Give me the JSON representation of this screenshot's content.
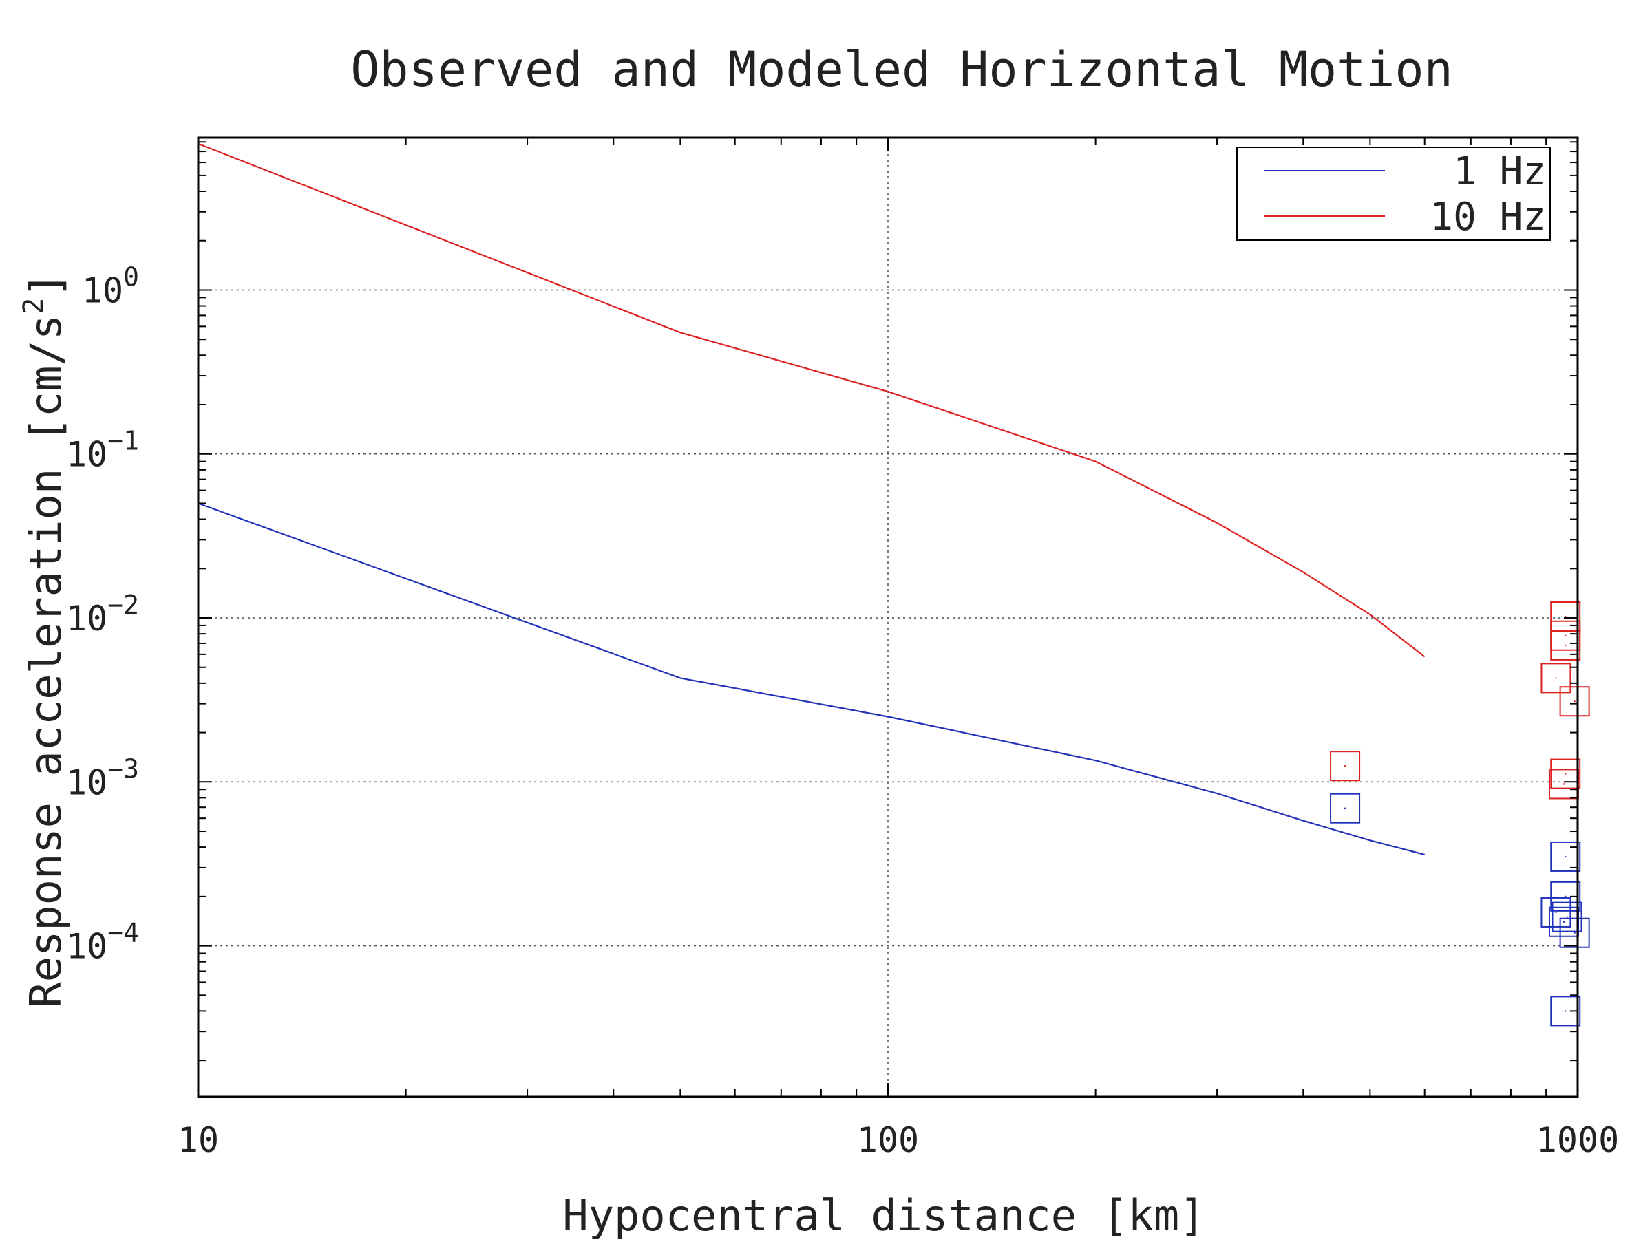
{
  "chart_data": {
    "type": "line",
    "title": "Observed and Modeled Horizontal Motion",
    "xlabel": "Hypocentral distance [km]",
    "ylabel_text": "Response acceleration [cm/s",
    "ylabel_sup": "2",
    "ylabel_end": "]",
    "x_scale": "log",
    "y_scale": "log",
    "xlim": [
      10,
      1000
    ],
    "ylim": [
      1.2e-05,
      8.5
    ],
    "grid": true,
    "legend_position": "top-right",
    "x_ticks": [
      {
        "value": 10,
        "label": "10"
      },
      {
        "value": 100,
        "label": "100"
      },
      {
        "value": 1000,
        "label": "1000"
      }
    ],
    "y_ticks": [
      {
        "value": 1,
        "base": "10",
        "exp": "0"
      },
      {
        "value": 0.1,
        "base": "10",
        "exp": "−1"
      },
      {
        "value": 0.01,
        "base": "10",
        "exp": "−2"
      },
      {
        "value": 0.001,
        "base": "10",
        "exp": "−3"
      },
      {
        "value": 0.0001,
        "base": "10",
        "exp": "−4"
      }
    ],
    "series": [
      {
        "name": "1 Hz",
        "color": "#2233bb",
        "line": {
          "x": [
            10,
            50,
            100,
            200,
            300,
            400,
            500,
            600
          ],
          "y": [
            0.05,
            0.0043,
            0.0025,
            0.00135,
            0.00085,
            0.00058,
            0.00044,
            0.00036
          ]
        },
        "observed": {
          "x": [
            460,
            960,
            960,
            930,
            965,
            955,
            990,
            960
          ],
          "y": [
            0.00069,
            0.00035,
            0.0002,
            0.00016,
            0.00015,
            0.00014,
            0.00012,
            4e-05
          ]
        }
      },
      {
        "name": "10 Hz",
        "color": "#dd2222",
        "line": {
          "x": [
            10,
            50,
            100,
            200,
            300,
            400,
            500,
            600
          ],
          "y": [
            7.8,
            0.55,
            0.24,
            0.09,
            0.038,
            0.019,
            0.0105,
            0.0058
          ]
        },
        "observed": {
          "x": [
            460,
            960,
            960,
            960,
            930,
            990,
            960,
            955
          ],
          "y": [
            0.00125,
            0.0102,
            0.0078,
            0.0068,
            0.0043,
            0.0031,
            0.00112,
            0.00097
          ]
        }
      }
    ]
  }
}
